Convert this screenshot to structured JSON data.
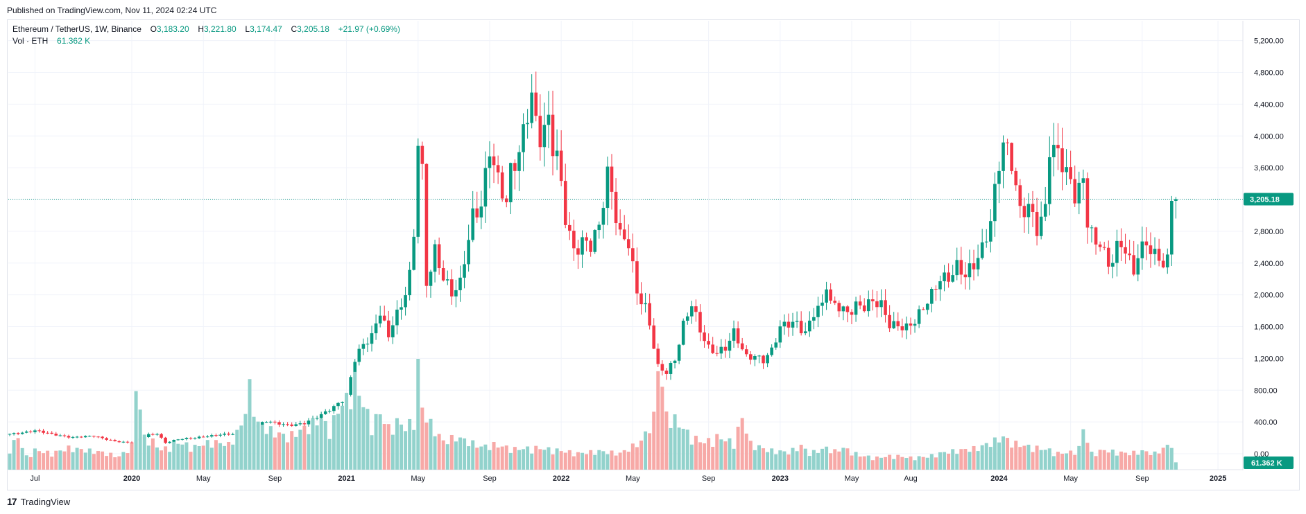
{
  "header": {
    "published": "Published on TradingView.com, Nov 11, 2024 02:24 UTC",
    "symbol": "Ethereum / TetherUS, 1W, Binance",
    "o_label": "O",
    "o_value": "3,183.20",
    "h_label": "H",
    "h_value": "3,221.80",
    "l_label": "L",
    "l_value": "3,174.47",
    "c_label": "C",
    "c_value": "3,205.18",
    "change": "+21.97 (+0.69%)",
    "vol_label": "Vol · ETH",
    "vol_value": "61.362 K"
  },
  "footer": {
    "brand": "TradingView",
    "logo": "17"
  },
  "colors": {
    "up": "#089981",
    "down": "#f23645",
    "vol_up": "#92d2cc",
    "vol_down": "#f7a9a7",
    "grid": "#f0f3fa",
    "text": "#131722",
    "axis_text": "#131722"
  },
  "chart_data": {
    "type": "candlestick",
    "title": "Ethereum / TetherUS, 1W, Binance",
    "ylim": [
      -200,
      5450
    ],
    "y_ticks": [
      0,
      400,
      800,
      1200,
      1600,
      2000,
      2400,
      2800,
      3200,
      3600,
      4000,
      4400,
      4800,
      5200
    ],
    "y_tick_labels": [
      "0.00",
      "400.00",
      "800.00",
      "1,200.00",
      "1,600.00",
      "2,000.00",
      "2,400.00",
      "2,800.00",
      "3,200.00",
      "3,600.00",
      "4,000.00",
      "4,400.00",
      "4,800.00",
      "5,200.00"
    ],
    "x_tick_labels": [
      {
        "label": "Jul",
        "bar": 6
      },
      {
        "label": "2020",
        "bar": 29,
        "bold": true
      },
      {
        "label": "May",
        "bar": 46
      },
      {
        "label": "Sep",
        "bar": 63
      },
      {
        "label": "2021",
        "bar": 80,
        "bold": true
      },
      {
        "label": "May",
        "bar": 97
      },
      {
        "label": "Sep",
        "bar": 114
      },
      {
        "label": "2022",
        "bar": 131,
        "bold": true
      },
      {
        "label": "May",
        "bar": 148
      },
      {
        "label": "Sep",
        "bar": 166
      },
      {
        "label": "2023",
        "bar": 183,
        "bold": true
      },
      {
        "label": "May",
        "bar": 200
      },
      {
        "label": "Aug",
        "bar": 214
      },
      {
        "label": "2024",
        "bar": 235,
        "bold": true
      },
      {
        "label": "May",
        "bar": 252
      },
      {
        "label": "Sep",
        "bar": 269
      },
      {
        "label": "2025",
        "bar": 287,
        "bold": true
      }
    ],
    "last_price": 3205.18,
    "last_price_label": "3,205.18",
    "last_volume_label": "61.362 K",
    "volume_scale_max": 1100,
    "close_anchors": [
      [
        0,
        250
      ],
      [
        6,
        290
      ],
      [
        10,
        245
      ],
      [
        15,
        210
      ],
      [
        20,
        220
      ],
      [
        25,
        160
      ],
      [
        29,
        135
      ],
      [
        33,
        240
      ],
      [
        35,
        260
      ],
      [
        37,
        140
      ],
      [
        38,
        155
      ],
      [
        40,
        180
      ],
      [
        44,
        200
      ],
      [
        46,
        220
      ],
      [
        50,
        240
      ],
      [
        54,
        245
      ],
      [
        58,
        350
      ],
      [
        61,
        410
      ],
      [
        63,
        380
      ],
      [
        66,
        360
      ],
      [
        70,
        390
      ],
      [
        74,
        480
      ],
      [
        77,
        590
      ],
      [
        80,
        740
      ],
      [
        82,
        1200
      ],
      [
        84,
        1350
      ],
      [
        86,
        1450
      ],
      [
        88,
        1800
      ],
      [
        90,
        1500
      ],
      [
        91,
        1700
      ],
      [
        93,
        1860
      ],
      [
        95,
        2200
      ],
      [
        96,
        2700
      ],
      [
        97,
        3900
      ],
      [
        98,
        3500
      ],
      [
        99,
        2150
      ],
      [
        101,
        2600
      ],
      [
        103,
        2250
      ],
      [
        105,
        2000
      ],
      [
        107,
        2100
      ],
      [
        108,
        2400
      ],
      [
        110,
        3000
      ],
      [
        112,
        3200
      ],
      [
        114,
        3900
      ],
      [
        116,
        3400
      ],
      [
        118,
        3100
      ],
      [
        119,
        3500
      ],
      [
        121,
        3800
      ],
      [
        123,
        4400
      ],
      [
        124,
        4600
      ],
      [
        125,
        4200
      ],
      [
        126,
        4000
      ],
      [
        128,
        4100
      ],
      [
        129,
        3800
      ],
      [
        130,
        3700
      ],
      [
        132,
        3000
      ],
      [
        134,
        2600
      ],
      [
        136,
        2700
      ],
      [
        138,
        2600
      ],
      [
        140,
        2800
      ],
      [
        142,
        3500
      ],
      [
        143,
        3300
      ],
      [
        145,
        2800
      ],
      [
        147,
        2700
      ],
      [
        149,
        2000
      ],
      [
        151,
        1800
      ],
      [
        152,
        1600
      ],
      [
        154,
        1100
      ],
      [
        156,
        1050
      ],
      [
        158,
        1200
      ],
      [
        160,
        1600
      ],
      [
        162,
        1850
      ],
      [
        164,
        1550
      ],
      [
        166,
        1350
      ],
      [
        168,
        1300
      ],
      [
        170,
        1330
      ],
      [
        172,
        1500
      ],
      [
        174,
        1300
      ],
      [
        175,
        1210
      ],
      [
        177,
        1250
      ],
      [
        179,
        1200
      ],
      [
        181,
        1300
      ],
      [
        183,
        1560
      ],
      [
        185,
        1620
      ],
      [
        187,
        1650
      ],
      [
        189,
        1550
      ],
      [
        191,
        1800
      ],
      [
        193,
        1850
      ],
      [
        194,
        2100
      ],
      [
        195,
        1850
      ],
      [
        197,
        1850
      ],
      [
        199,
        1800
      ],
      [
        201,
        1900
      ],
      [
        203,
        1850
      ],
      [
        205,
        1880
      ],
      [
        207,
        1850
      ],
      [
        209,
        1640
      ],
      [
        211,
        1650
      ],
      [
        213,
        1600
      ],
      [
        215,
        1650
      ],
      [
        217,
        1800
      ],
      [
        219,
        2000
      ],
      [
        221,
        2250
      ],
      [
        223,
        2250
      ],
      [
        225,
        2350
      ],
      [
        227,
        2200
      ],
      [
        229,
        2350
      ],
      [
        231,
        2600
      ],
      [
        233,
        3000
      ],
      [
        235,
        3700
      ],
      [
        236,
        3900
      ],
      [
        238,
        3600
      ],
      [
        240,
        3000
      ],
      [
        242,
        3150
      ],
      [
        244,
        2900
      ],
      [
        246,
        3100
      ],
      [
        247,
        3850
      ],
      [
        249,
        3700
      ],
      [
        251,
        3500
      ],
      [
        253,
        3300
      ],
      [
        255,
        3500
      ],
      [
        256,
        3000
      ],
      [
        258,
        2600
      ],
      [
        259,
        2650
      ],
      [
        261,
        2300
      ],
      [
        263,
        2600
      ],
      [
        265,
        2650
      ],
      [
        267,
        2300
      ],
      [
        268,
        2550
      ],
      [
        270,
        2600
      ],
      [
        272,
        2450
      ],
      [
        274,
        2400
      ],
      [
        275,
        2450
      ],
      [
        276,
        3183
      ],
      [
        277,
        3205
      ]
    ],
    "volume_anchors": [
      [
        0,
        200
      ],
      [
        2,
        300
      ],
      [
        4,
        120
      ],
      [
        6,
        180
      ],
      [
        10,
        150
      ],
      [
        14,
        200
      ],
      [
        18,
        180
      ],
      [
        22,
        160
      ],
      [
        26,
        120
      ],
      [
        29,
        220
      ],
      [
        30,
        800
      ],
      [
        32,
        300
      ],
      [
        34,
        260
      ],
      [
        36,
        180
      ],
      [
        40,
        250
      ],
      [
        44,
        210
      ],
      [
        48,
        260
      ],
      [
        52,
        230
      ],
      [
        55,
        400
      ],
      [
        57,
        750
      ],
      [
        59,
        420
      ],
      [
        62,
        360
      ],
      [
        66,
        300
      ],
      [
        70,
        380
      ],
      [
        74,
        470
      ],
      [
        76,
        360
      ],
      [
        78,
        550
      ],
      [
        80,
        650
      ],
      [
        82,
        820
      ],
      [
        84,
        600
      ],
      [
        86,
        420
      ],
      [
        88,
        520
      ],
      [
        90,
        380
      ],
      [
        92,
        440
      ],
      [
        94,
        390
      ],
      [
        96,
        450
      ],
      [
        97,
        1050
      ],
      [
        98,
        560
      ],
      [
        100,
        420
      ],
      [
        103,
        260
      ],
      [
        106,
        300
      ],
      [
        109,
        260
      ],
      [
        112,
        210
      ],
      [
        115,
        230
      ],
      [
        120,
        190
      ],
      [
        125,
        200
      ],
      [
        130,
        180
      ],
      [
        135,
        150
      ],
      [
        140,
        170
      ],
      [
        145,
        150
      ],
      [
        150,
        260
      ],
      [
        153,
        480
      ],
      [
        154,
        1010
      ],
      [
        156,
        500
      ],
      [
        158,
        460
      ],
      [
        160,
        380
      ],
      [
        162,
        300
      ],
      [
        165,
        250
      ],
      [
        168,
        300
      ],
      [
        172,
        250
      ],
      [
        174,
        480
      ],
      [
        176,
        240
      ],
      [
        180,
        180
      ],
      [
        185,
        160
      ],
      [
        188,
        220
      ],
      [
        190,
        150
      ],
      [
        194,
        200
      ],
      [
        196,
        170
      ],
      [
        198,
        200
      ],
      [
        202,
        130
      ],
      [
        206,
        110
      ],
      [
        210,
        130
      ],
      [
        214,
        110
      ],
      [
        218,
        120
      ],
      [
        222,
        160
      ],
      [
        226,
        180
      ],
      [
        230,
        200
      ],
      [
        233,
        250
      ],
      [
        236,
        300
      ],
      [
        238,
        250
      ],
      [
        241,
        220
      ],
      [
        244,
        200
      ],
      [
        247,
        180
      ],
      [
        249,
        150
      ],
      [
        252,
        160
      ],
      [
        254,
        200
      ],
      [
        255,
        380
      ],
      [
        257,
        150
      ],
      [
        260,
        180
      ],
      [
        263,
        160
      ],
      [
        266,
        150
      ],
      [
        269,
        170
      ],
      [
        272,
        150
      ],
      [
        276,
        240
      ],
      [
        277,
        61
      ]
    ]
  }
}
